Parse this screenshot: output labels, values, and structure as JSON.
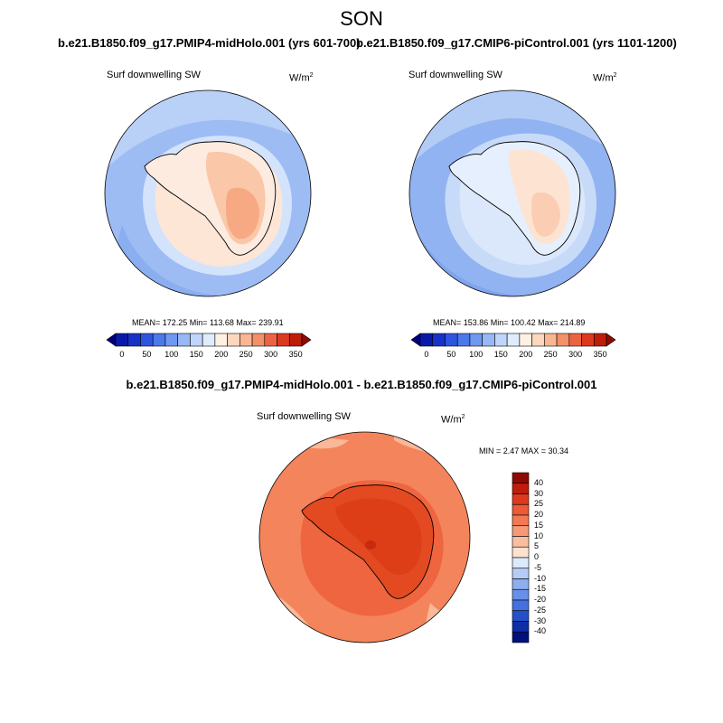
{
  "season": "SON",
  "panel_top_left": {
    "case_title": "b.e21.B1850.f09_g17.PMIP4-midHolo.001 (yrs 601-700)",
    "variable": "Surf downwelling SW",
    "units_base": "W/m",
    "units_exp": "2",
    "stats": "MEAN= 172.25   Min= 113.68   Max= 239.91"
  },
  "panel_top_right": {
    "case_title": "b.e21.B1850.f09_g17.CMIP6-piControl.001 (yrs 1101-1200)",
    "variable": "Surf downwelling SW",
    "units_base": "W/m",
    "units_exp": "2",
    "stats": "MEAN= 153.86   Min= 100.42   Max= 214.89"
  },
  "panel_diff": {
    "case_title": "b.e21.B1850.f09_g17.PMIP4-midHolo.001 - b.e21.B1850.f09_g17.CMIP6-piControl.001",
    "variable": "Surf downwelling SW",
    "units_base": "W/m",
    "units_exp": "2",
    "stats": "MIN =   2.47 MAX =  30.34"
  },
  "colorbar_abs": {
    "ticks": [
      "0",
      "50",
      "100",
      "150",
      "200",
      "250",
      "300",
      "350"
    ],
    "colors": [
      "#00007f",
      "#0a1aa8",
      "#1633c9",
      "#2e55e0",
      "#4b79ea",
      "#6f98f0",
      "#97b7f5",
      "#bfd5fa",
      "#e0ecfd",
      "#fff0e4",
      "#fcd6bd",
      "#f8b693",
      "#f38f69",
      "#ec6344",
      "#dc3a1f",
      "#bf1d0b",
      "#8f0a04"
    ]
  },
  "colorbar_diff": {
    "ticks": [
      "40",
      "30",
      "25",
      "20",
      "15",
      "10",
      "5",
      "0",
      "-5",
      "-10",
      "-15",
      "-20",
      "-25",
      "-30",
      "-40"
    ],
    "colors": [
      "#8f0a04",
      "#bf1d0b",
      "#dc3a1f",
      "#ec5a37",
      "#f27a52",
      "#f69a76",
      "#f9bd9f",
      "#fde2cf",
      "#dce9fb",
      "#b5cdf6",
      "#8daef0",
      "#6890ea",
      "#4470e0",
      "#2450c8",
      "#0c2ea6",
      "#00107e"
    ]
  }
}
